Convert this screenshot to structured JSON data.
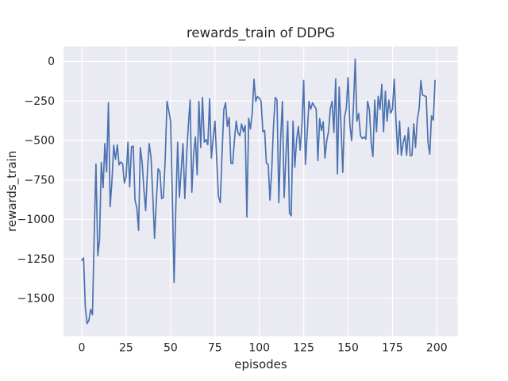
{
  "figure": {
    "background_color": "#ffffff"
  },
  "chart_data": {
    "type": "line",
    "title": "rewards_train of DDPG",
    "xlabel": "episodes",
    "ylabel": "rewards_train",
    "grid": true,
    "legend": false,
    "plot_bg_color": "#eaeaf2",
    "grid_color": "#ffffff",
    "text_color": "#262626",
    "xlim": [
      -10.3,
      211.7
    ],
    "ylim": [
      -1740,
      95
    ],
    "x_ticks": [
      0,
      25,
      50,
      75,
      100,
      125,
      150,
      175,
      200
    ],
    "x_tick_labels": [
      "0",
      "25",
      "50",
      "75",
      "100",
      "125",
      "150",
      "175",
      "200"
    ],
    "y_ticks": [
      0,
      -250,
      -500,
      -750,
      -1000,
      -1250,
      -1500
    ],
    "y_tick_labels": [
      "0",
      "−250",
      "−500",
      "−750",
      "−1000",
      "−1250",
      "−1500"
    ],
    "series": [
      {
        "name": "rewards_train",
        "color": "#4c72b0",
        "x_start": 0,
        "x_step": 1,
        "values": [
          -1260,
          -1245,
          -1560,
          -1660,
          -1640,
          -1570,
          -1605,
          -1100,
          -650,
          -1230,
          -1130,
          -640,
          -800,
          -520,
          -700,
          -262,
          -920,
          -750,
          -530,
          -620,
          -528,
          -655,
          -637,
          -648,
          -770,
          -728,
          -512,
          -795,
          -540,
          -537,
          -878,
          -928,
          -1070,
          -545,
          -640,
          -810,
          -945,
          -690,
          -520,
          -610,
          -850,
          -1120,
          -880,
          -680,
          -695,
          -870,
          -860,
          -610,
          -253,
          -310,
          -378,
          -850,
          -1400,
          -905,
          -512,
          -860,
          -690,
          -520,
          -868,
          -610,
          -410,
          -245,
          -828,
          -590,
          -478,
          -718,
          -253,
          -545,
          -228,
          -512,
          -495,
          -528,
          -237,
          -612,
          -490,
          -378,
          -618,
          -853,
          -895,
          -590,
          -305,
          -262,
          -412,
          -355,
          -645,
          -648,
          -495,
          -378,
          -452,
          -470,
          -395,
          -445,
          -405,
          -985,
          -360,
          -428,
          -332,
          -112,
          -253,
          -222,
          -232,
          -252,
          -445,
          -438,
          -645,
          -652,
          -878,
          -695,
          -405,
          -228,
          -245,
          -895,
          -495,
          -253,
          -862,
          -598,
          -378,
          -962,
          -978,
          -378,
          -670,
          -495,
          -412,
          -562,
          -402,
          -120,
          -653,
          -448,
          -253,
          -302,
          -262,
          -282,
          -300,
          -628,
          -362,
          -438,
          -382,
          -612,
          -498,
          -445,
          -302,
          -252,
          -450,
          -110,
          -712,
          -162,
          -402,
          -703,
          -352,
          -298,
          -102,
          -398,
          -502,
          -298,
          15,
          -378,
          -330,
          -470,
          -488,
          -478,
          -492,
          -253,
          -302,
          -512,
          -603,
          -245,
          -445,
          -220,
          -303,
          -145,
          -445,
          -187,
          -378,
          -245,
          -328,
          -302,
          -112,
          -378,
          -587,
          -378,
          -595,
          -520,
          -470,
          -595,
          -420,
          -598,
          -595,
          -395,
          -545,
          -370,
          -302,
          -120,
          -212,
          -218,
          -222,
          -512,
          -587,
          -345,
          -372,
          -120
        ]
      }
    ]
  }
}
